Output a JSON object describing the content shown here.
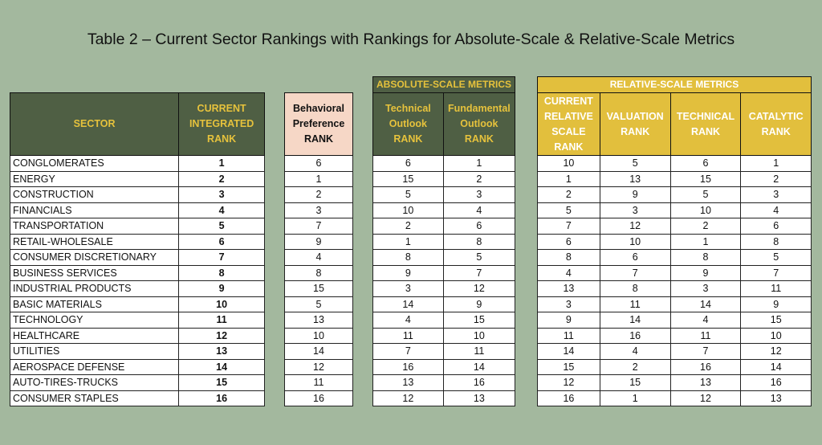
{
  "title": "Table 2 – Current Sector Rankings with Rankings for Absolute-Scale & Relative-Scale Metrics",
  "headers": {
    "sector": "SECTOR",
    "current_integrated_rank": [
      "CURRENT",
      "INTEGRATED",
      "RANK"
    ],
    "behavioral": [
      "Behavioral",
      "Preference",
      "RANK"
    ],
    "absolute_group": "ABSOLUTE-SCALE METRICS",
    "technical_outlook": [
      "Technical",
      "Outlook",
      "RANK"
    ],
    "fundamental_outlook": [
      "Fundamental",
      "Outlook",
      "RANK"
    ],
    "relative_group": "RELATIVE-SCALE METRICS",
    "current_relative": [
      "CURRENT",
      "RELATIVE",
      "SCALE",
      "RANK"
    ],
    "valuation": [
      "VALUATION",
      "RANK"
    ],
    "technical": [
      "TECHNICAL",
      "RANK"
    ],
    "catalytic": [
      "CATALYTIC",
      "RANK"
    ]
  },
  "rows": [
    {
      "sector": "CONGLOMERATES",
      "rank": "1",
      "behavioral": "6",
      "tech_outlook": "6",
      "fund_outlook": "1",
      "rel_scale": "10",
      "valuation": "5",
      "technical": "6",
      "catalytic": "1"
    },
    {
      "sector": "ENERGY",
      "rank": "2",
      "behavioral": "1",
      "tech_outlook": "15",
      "fund_outlook": "2",
      "rel_scale": "1",
      "valuation": "13",
      "technical": "15",
      "catalytic": "2"
    },
    {
      "sector": "CONSTRUCTION",
      "rank": "3",
      "behavioral": "2",
      "tech_outlook": "5",
      "fund_outlook": "3",
      "rel_scale": "2",
      "valuation": "9",
      "technical": "5",
      "catalytic": "3"
    },
    {
      "sector": "FINANCIALS",
      "rank": "4",
      "behavioral": "3",
      "tech_outlook": "10",
      "fund_outlook": "4",
      "rel_scale": "5",
      "valuation": "3",
      "technical": "10",
      "catalytic": "4"
    },
    {
      "sector": "TRANSPORTATION",
      "rank": "5",
      "behavioral": "7",
      "tech_outlook": "2",
      "fund_outlook": "6",
      "rel_scale": "7",
      "valuation": "12",
      "technical": "2",
      "catalytic": "6"
    },
    {
      "sector": "RETAIL-WHOLESALE",
      "rank": "6",
      "behavioral": "9",
      "tech_outlook": "1",
      "fund_outlook": "8",
      "rel_scale": "6",
      "valuation": "10",
      "technical": "1",
      "catalytic": "8"
    },
    {
      "sector": "CONSUMER DISCRETIONARY",
      "rank": "7",
      "behavioral": "4",
      "tech_outlook": "8",
      "fund_outlook": "5",
      "rel_scale": "8",
      "valuation": "6",
      "technical": "8",
      "catalytic": "5"
    },
    {
      "sector": "BUSINESS SERVICES",
      "rank": "8",
      "behavioral": "8",
      "tech_outlook": "9",
      "fund_outlook": "7",
      "rel_scale": "4",
      "valuation": "7",
      "technical": "9",
      "catalytic": "7"
    },
    {
      "sector": "INDUSTRIAL PRODUCTS",
      "rank": "9",
      "behavioral": "15",
      "tech_outlook": "3",
      "fund_outlook": "12",
      "rel_scale": "13",
      "valuation": "8",
      "technical": "3",
      "catalytic": "11"
    },
    {
      "sector": "BASIC MATERIALS",
      "rank": "10",
      "behavioral": "5",
      "tech_outlook": "14",
      "fund_outlook": "9",
      "rel_scale": "3",
      "valuation": "11",
      "technical": "14",
      "catalytic": "9"
    },
    {
      "sector": "TECHNOLOGY",
      "rank": "11",
      "behavioral": "13",
      "tech_outlook": "4",
      "fund_outlook": "15",
      "rel_scale": "9",
      "valuation": "14",
      "technical": "4",
      "catalytic": "15"
    },
    {
      "sector": "HEALTHCARE",
      "rank": "12",
      "behavioral": "10",
      "tech_outlook": "11",
      "fund_outlook": "10",
      "rel_scale": "11",
      "valuation": "16",
      "technical": "11",
      "catalytic": "10"
    },
    {
      "sector": "UTILITIES",
      "rank": "13",
      "behavioral": "14",
      "tech_outlook": "7",
      "fund_outlook": "11",
      "rel_scale": "14",
      "valuation": "4",
      "technical": "7",
      "catalytic": "12"
    },
    {
      "sector": "AEROSPACE DEFENSE",
      "rank": "14",
      "behavioral": "12",
      "tech_outlook": "16",
      "fund_outlook": "14",
      "rel_scale": "15",
      "valuation": "2",
      "technical": "16",
      "catalytic": "14"
    },
    {
      "sector": "AUTO-TIRES-TRUCKS",
      "rank": "15",
      "behavioral": "11",
      "tech_outlook": "13",
      "fund_outlook": "16",
      "rel_scale": "12",
      "valuation": "15",
      "technical": "13",
      "catalytic": "16"
    },
    {
      "sector": "CONSUMER STAPLES",
      "rank": "16",
      "behavioral": "16",
      "tech_outlook": "12",
      "fund_outlook": "13",
      "rel_scale": "16",
      "valuation": "1",
      "technical": "12",
      "catalytic": "13"
    }
  ]
}
